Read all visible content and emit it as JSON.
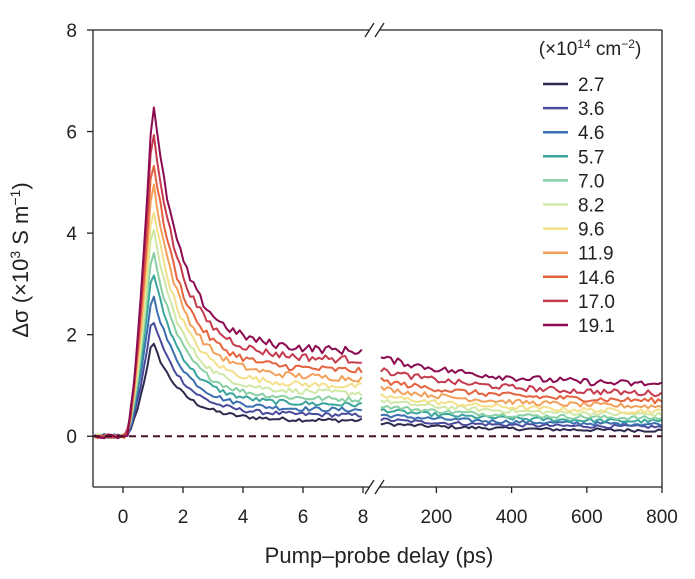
{
  "chart_data": {
    "type": "line",
    "title": "",
    "xlabel": "Pump–probe delay (ps)",
    "ylabel": {
      "prefix": "Δσ (×10",
      "exp": "3",
      "mid": " S m",
      "exp2": "−1",
      "suffix": ")"
    },
    "ylim": [
      -1,
      8
    ],
    "yticks": [
      "0",
      "2",
      "4",
      "6",
      "8"
    ],
    "yticks_values": [
      0,
      2,
      4,
      6,
      8
    ],
    "panels": [
      {
        "name": "short",
        "xlim": [
          -1,
          8.2
        ],
        "xticks_values": [
          0,
          2,
          4,
          6,
          8
        ],
        "xticks": [
          "0",
          "2",
          "4",
          "6",
          "8"
        ]
      },
      {
        "name": "long",
        "xlim": [
          50,
          800
        ],
        "xticks_values": [
          200,
          400,
          600,
          800
        ],
        "xticks": [
          "200",
          "400",
          "600",
          "800"
        ]
      }
    ],
    "baseline": {
      "y": 0,
      "style": "dashed",
      "color": "#4a0f26"
    },
    "legend": {
      "title_prefix": "(×10",
      "title_exp": "14",
      "title_mid": " cm",
      "title_exp2": "−2",
      "title_suffix": ")",
      "placement": "top-right"
    },
    "series": [
      {
        "name": "2.7",
        "color": "#2e2a4f",
        "peak": 1.82,
        "tail_short": 0.3,
        "tail_long_start": 0.25,
        "tail_long_end": 0.1
      },
      {
        "name": "3.6",
        "color": "#4a4a9c",
        "peak": 2.27,
        "tail_short": 0.4,
        "tail_long_start": 0.33,
        "tail_long_end": 0.17
      },
      {
        "name": "4.6",
        "color": "#3b6fb0",
        "peak": 2.75,
        "tail_short": 0.5,
        "tail_long_start": 0.42,
        "tail_long_end": 0.22
      },
      {
        "name": "5.7",
        "color": "#3aa59c",
        "peak": 3.2,
        "tail_short": 0.6,
        "tail_long_start": 0.52,
        "tail_long_end": 0.27
      },
      {
        "name": "7.0",
        "color": "#88cfa4",
        "peak": 3.6,
        "tail_short": 0.7,
        "tail_long_start": 0.6,
        "tail_long_end": 0.33
      },
      {
        "name": "8.2",
        "color": "#cfe8a6",
        "peak": 4.02,
        "tail_short": 0.82,
        "tail_long_start": 0.7,
        "tail_long_end": 0.4
      },
      {
        "name": "9.6",
        "color": "#f3e08a",
        "peak": 4.42,
        "tail_short": 0.95,
        "tail_long_start": 0.8,
        "tail_long_end": 0.46
      },
      {
        "name": "11.9",
        "color": "#f3a05a",
        "peak": 4.88,
        "tail_short": 1.1,
        "tail_long_start": 0.95,
        "tail_long_end": 0.55
      },
      {
        "name": "14.6",
        "color": "#e5623f",
        "peak": 5.3,
        "tail_short": 1.25,
        "tail_long_start": 1.1,
        "tail_long_end": 0.66
      },
      {
        "name": "17.0",
        "color": "#c63a4d",
        "peak": 5.82,
        "tail_short": 1.45,
        "tail_long_start": 1.3,
        "tail_long_end": 0.8
      },
      {
        "name": "19.1",
        "color": "#8b0a50",
        "peak": 6.28,
        "tail_short": 1.62,
        "tail_long_start": 1.55,
        "tail_long_end": 0.97
      }
    ]
  }
}
